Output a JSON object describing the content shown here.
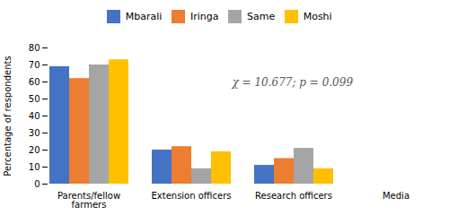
{
  "chart_data": {
    "type": "bar",
    "categories": [
      "Parents/fellow\nfarmers",
      "Extension officers",
      "Research officers",
      "Media"
    ],
    "series": [
      {
        "name": "Mbarali",
        "color": "#4472C4",
        "values": [
          69,
          20,
          11,
          0
        ]
      },
      {
        "name": "Iringa",
        "color": "#ED7D31",
        "values": [
          62,
          22,
          15,
          0
        ]
      },
      {
        "name": "Same",
        "color": "#A5A5A5",
        "values": [
          70,
          9,
          21,
          0
        ]
      },
      {
        "name": "Moshi",
        "color": "#FFC000",
        "values": [
          73,
          19,
          9,
          0
        ]
      }
    ],
    "ylabel": "Percentage of respondents",
    "ylim": [
      0,
      80
    ],
    "yticks": [
      0,
      10,
      20,
      30,
      40,
      50,
      60,
      70,
      80
    ],
    "annotation": "χ = 10.677; p = 0.099",
    "legend": "top",
    "grid": false
  }
}
